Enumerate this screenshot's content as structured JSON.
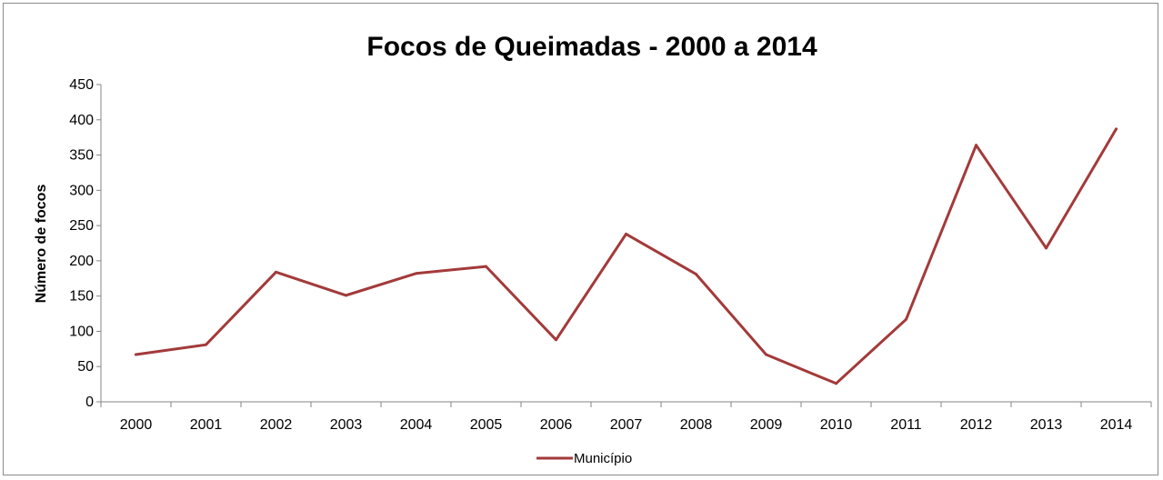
{
  "chart_data": {
    "type": "line",
    "title": "Focos de Queimadas - 2000 a 2014",
    "xlabel": "",
    "ylabel": "Número de  focos",
    "ylim": [
      0,
      450
    ],
    "yticks": [
      0,
      50,
      100,
      150,
      200,
      250,
      300,
      350,
      400,
      450
    ],
    "categories": [
      "2000",
      "2001",
      "2002",
      "2003",
      "2004",
      "2005",
      "2006",
      "2007",
      "2008",
      "2009",
      "2010",
      "2011",
      "2012",
      "2013",
      "2014"
    ],
    "series": [
      {
        "name": "Município",
        "color": "#a33a3a",
        "values": [
          67,
          81,
          184,
          151,
          182,
          192,
          88,
          238,
          181,
          67,
          26,
          117,
          364,
          218,
          387
        ]
      }
    ],
    "grid": false,
    "legend_position": "bottom"
  }
}
